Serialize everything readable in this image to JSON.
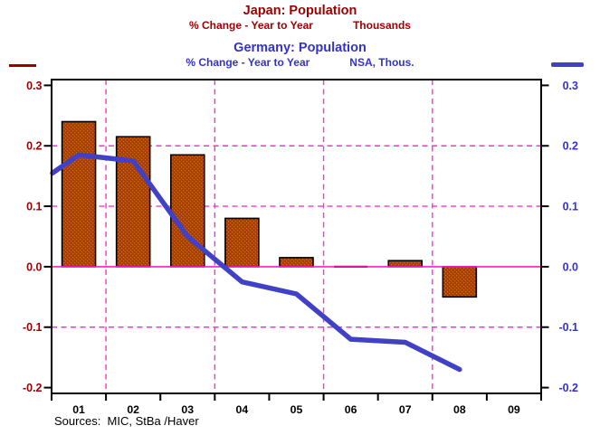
{
  "header": {
    "japan": {
      "title": "Japan: Population",
      "subtitle_left": "% Change - Year to Year",
      "subtitle_right": "Thousands",
      "color": "#9b0000"
    },
    "germany": {
      "title": "Germany: Population",
      "subtitle_left": "% Change - Year to Year",
      "subtitle_right": "NSA, Thous.",
      "color": "#3333cc"
    }
  },
  "legend": {
    "japan_marker_color": "#9b0000",
    "germany_marker_color": "#4141c8"
  },
  "footer": {
    "sources": "Sources:  MIC, StBa /Haver"
  },
  "chart_data": {
    "type": "combo_bar_line",
    "categories": [
      "01",
      "02",
      "03",
      "04",
      "05",
      "06",
      "07",
      "08",
      "09"
    ],
    "series": [
      {
        "name": "Japan: Population (% Change - Year to Year, Thousands)",
        "type": "bar",
        "color": "#a63d0e",
        "dot_color": "#d4701c",
        "values": [
          0.24,
          0.215,
          0.185,
          0.08,
          0.015,
          0.0,
          0.01,
          -0.05,
          null
        ]
      },
      {
        "name": "Germany: Population (% Change - Year to Year, NSA, Thous.)",
        "type": "line",
        "color": "#4141c8",
        "x": [
          0.5,
          1,
          2,
          3,
          4,
          5,
          6,
          7,
          8
        ],
        "values": [
          0.155,
          0.185,
          0.175,
          0.05,
          -0.025,
          -0.045,
          -0.12,
          -0.125,
          -0.17
        ]
      }
    ],
    "y_axis": {
      "ticks": [
        0.3,
        0.2,
        0.1,
        0.0,
        -0.1,
        -0.2
      ],
      "tick_labels": [
        "0.3",
        "0.2",
        "0.1",
        "0.0",
        "-0.1",
        "-0.2"
      ],
      "range": [
        -0.2,
        0.3
      ],
      "left_label_color": "#9b0000",
      "right_label_color": "#3333cc"
    },
    "x_axis": {
      "label_color": "#000000"
    },
    "gridlines": {
      "h_values": [
        0.2,
        0.1,
        -0.1
      ],
      "v_boundaries": [
        1,
        3,
        5,
        7
      ],
      "color": "#ff33cc",
      "zero_line_color": "#ff1dc4",
      "style": "dashed"
    }
  }
}
